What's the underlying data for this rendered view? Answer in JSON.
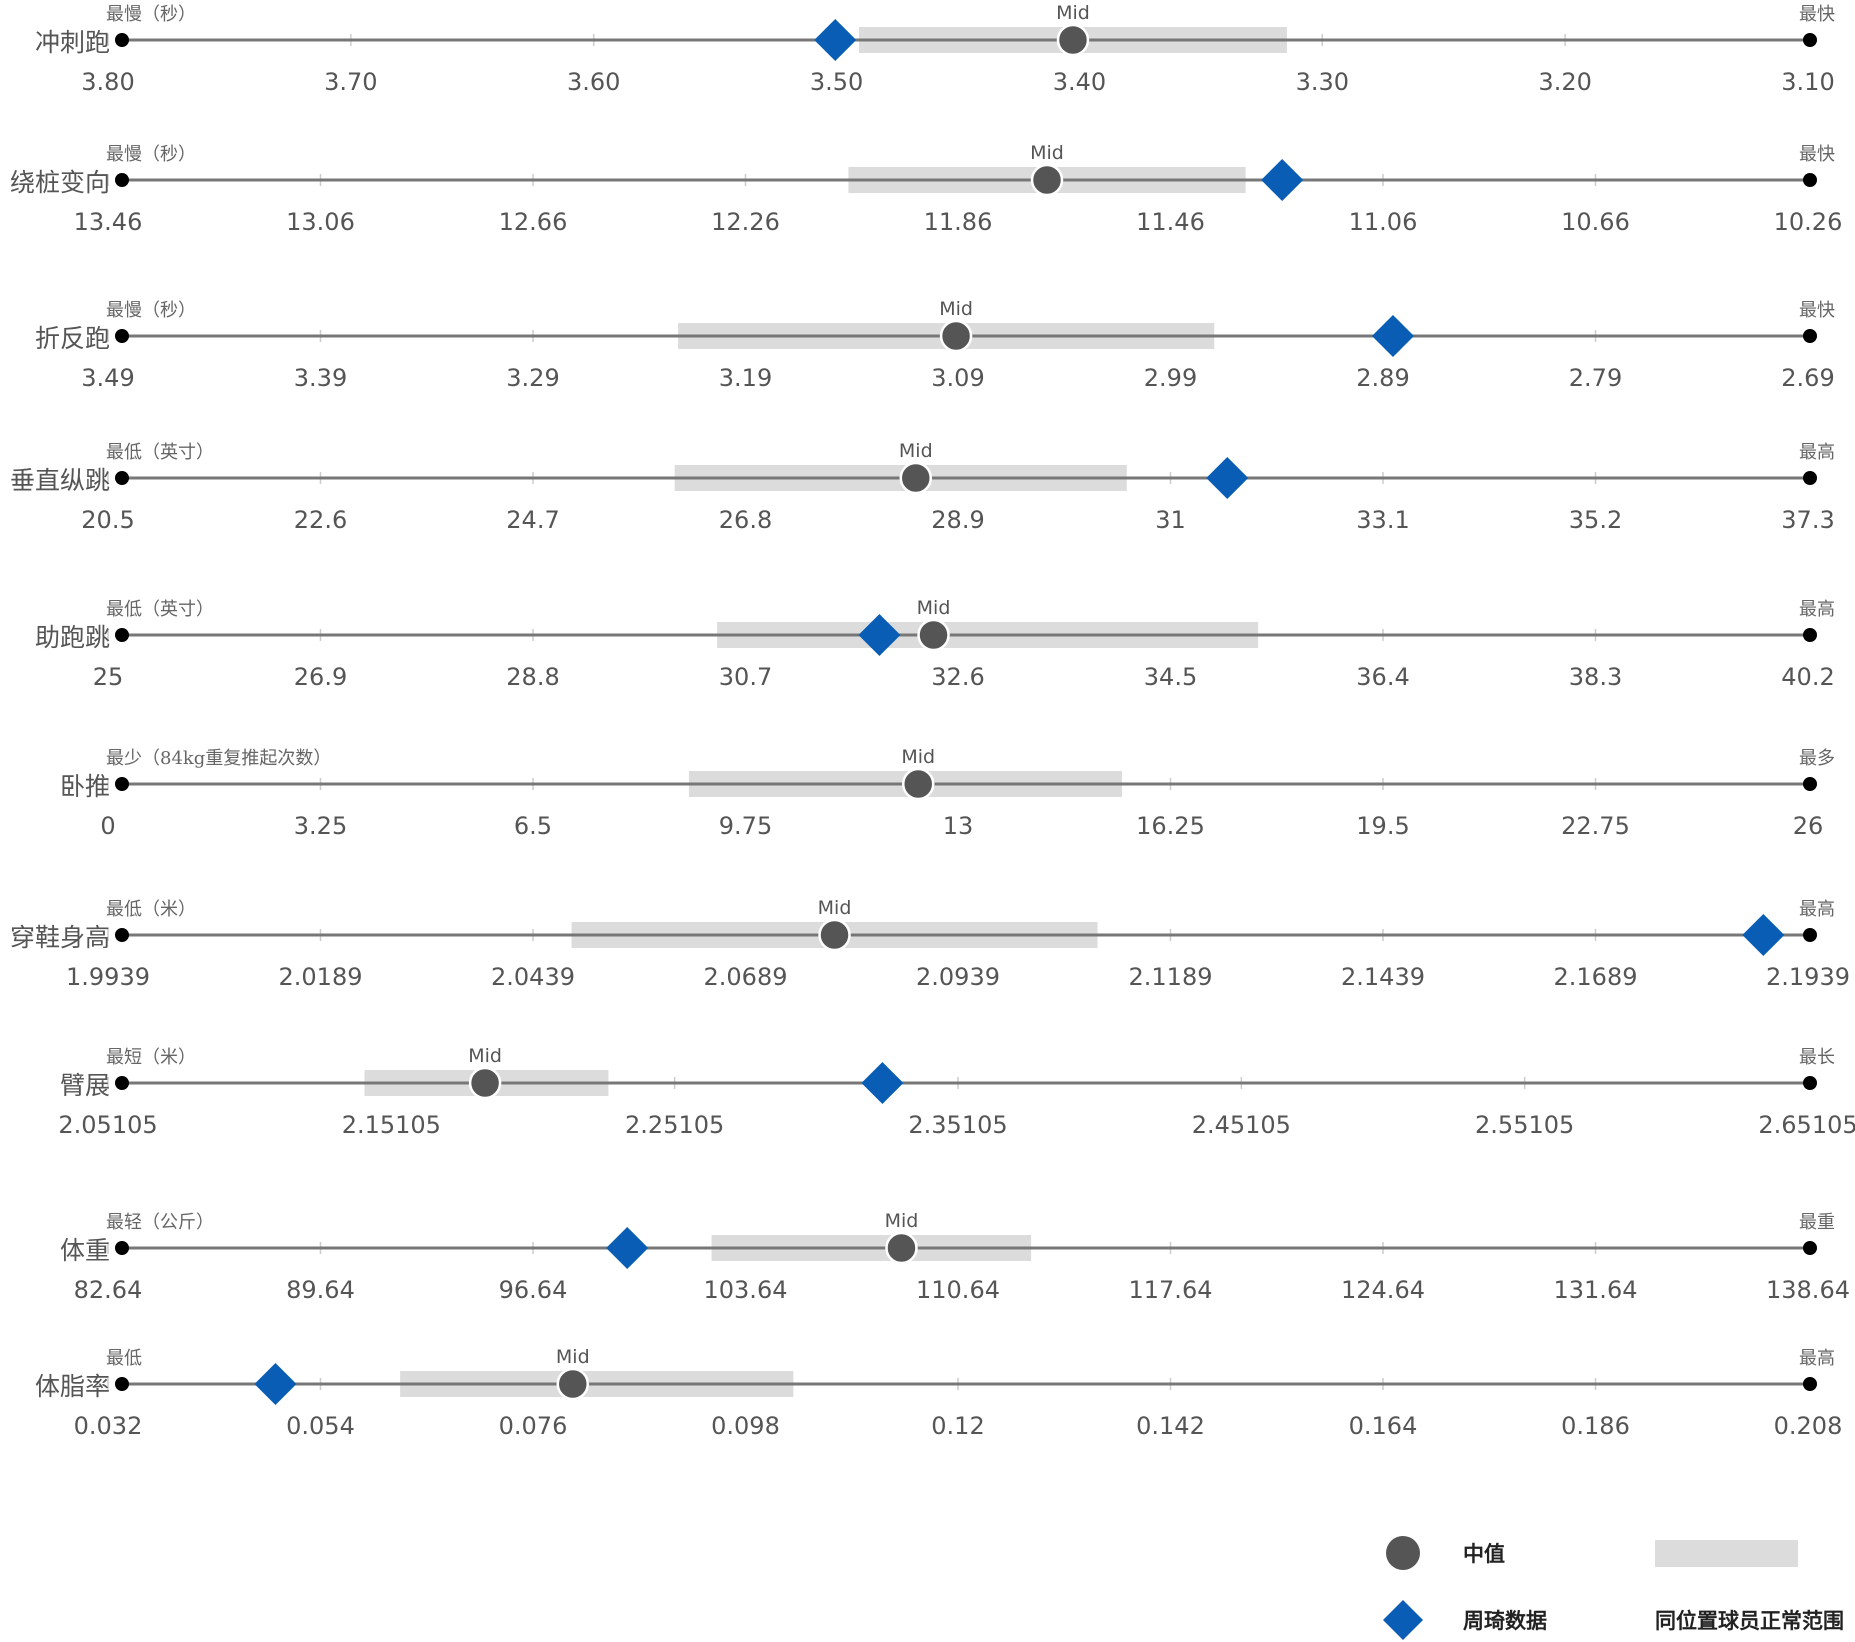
{
  "colors": {
    "axis_line": "#777777",
    "range_band": "#dcdcdc",
    "median_marker": "#555555",
    "player_marker": "#0a5db4",
    "endpoint": "#000000",
    "tick_mark": "#cccccc"
  },
  "legend": {
    "median": "中值",
    "player": "周琦数据",
    "range": "同位置球员正常范围"
  },
  "chart_data": {
    "type": "range-dot",
    "mid_text": "Mid",
    "rows": [
      {
        "label": "冲刺跑",
        "left_end": "最慢（秒）",
        "right_end": "最快",
        "ticks": [
          "3.80",
          "3.70",
          "3.60",
          "3.50",
          "3.40",
          "3.30",
          "3.20",
          "3.10"
        ],
        "domain": [
          3.8,
          3.09
        ],
        "range": [
          3.49,
          3.31
        ],
        "median": 3.4,
        "player": 3.5
      },
      {
        "label": "绕桩变向",
        "left_end": "最慢（秒）",
        "right_end": "最快",
        "ticks": [
          "13.46",
          "13.06",
          "12.66",
          "12.26",
          "11.86",
          "11.46",
          "11.06",
          "10.66",
          "10.26"
        ],
        "domain": [
          13.49,
          10.26
        ],
        "range": [
          12.1,
          11.34
        ],
        "median": 11.72,
        "player": 11.27
      },
      {
        "label": "折反跑",
        "left_end": "最慢（秒）",
        "right_end": "最快",
        "ticks": [
          "3.49",
          "3.39",
          "3.29",
          "3.19",
          "3.09",
          "2.99",
          "2.89",
          "2.79",
          "2.69"
        ],
        "domain": [
          3.53,
          2.68
        ],
        "range": [
          3.25,
          2.98
        ],
        "median": 3.11,
        "player": 2.89
      },
      {
        "label": "垂直纵跳",
        "left_end": "最低（英寸）",
        "right_end": "最高",
        "ticks": [
          "20.5",
          "22.6",
          "24.7",
          "26.8",
          "28.9",
          "31",
          "33.1",
          "35.2",
          "37.3"
        ],
        "domain": [
          20.5,
          37.3
        ],
        "range": [
          26.0,
          30.5
        ],
        "median": 28.4,
        "player": 31.5
      },
      {
        "label": "助跑跳",
        "left_end": "最低（英寸）",
        "right_end": "最高",
        "ticks": [
          "25",
          "26.9",
          "28.8",
          "30.7",
          "32.6",
          "34.5",
          "36.4",
          "38.3",
          "40.2"
        ],
        "domain": [
          25.2,
          40.8
        ],
        "range": [
          30.7,
          35.7
        ],
        "median": 32.7,
        "player": 32.2
      },
      {
        "label": "卧推",
        "left_end": "最少（84kg重复推起次数）",
        "right_end": "最多",
        "ticks": [
          "0",
          "3.25",
          "6.5",
          "9.75",
          "13",
          "16.25",
          "19.5",
          "22.75",
          "26"
        ],
        "domain": [
          0.5,
          27.0
        ],
        "range": [
          9.4,
          16.2
        ],
        "median": 13.0,
        "player": null
      },
      {
        "label": "穿鞋身高",
        "left_end": "最低（米）",
        "right_end": "最高",
        "ticks": [
          "1.9939",
          "2.0189",
          "2.0439",
          "2.0689",
          "2.0939",
          "2.1189",
          "2.1439",
          "2.1689",
          "2.1939"
        ],
        "domain": [
          1.9975,
          2.1965
        ],
        "range": [
          2.0505,
          2.1125
        ],
        "median": 2.0815,
        "player": 2.191
      },
      {
        "label": "臂展",
        "left_end": "最短（米）",
        "right_end": "最长",
        "ticks": [
          "2.05105",
          "2.15105",
          "2.25105",
          "2.35105",
          "2.45105",
          "2.55105",
          "2.65105"
        ],
        "domain": [
          2.0505,
          2.6665
        ],
        "range": [
          2.139,
          2.228
        ],
        "median": 2.183,
        "player": 2.328
      },
      {
        "label": "体重",
        "left_end": "最轻（公斤）",
        "right_end": "最重",
        "ticks": [
          "82.64",
          "89.64",
          "96.64",
          "103.64",
          "110.64",
          "117.64",
          "124.64",
          "131.64",
          "138.64"
        ],
        "domain": [
          82.64,
          138.64
        ],
        "range": [
          102.2,
          112.8
        ],
        "median": 108.5,
        "player": 99.4
      },
      {
        "label": "体脂率",
        "left_end": "最低",
        "right_end": "最高",
        "ticks": [
          "0.032",
          "0.054",
          "0.076",
          "0.098",
          "0.12",
          "0.142",
          "0.164",
          "0.186",
          "0.208"
        ],
        "domain": [
          0.032,
          0.208
        ],
        "range": [
          0.061,
          0.102
        ],
        "median": 0.079,
        "player": 0.048
      }
    ]
  }
}
